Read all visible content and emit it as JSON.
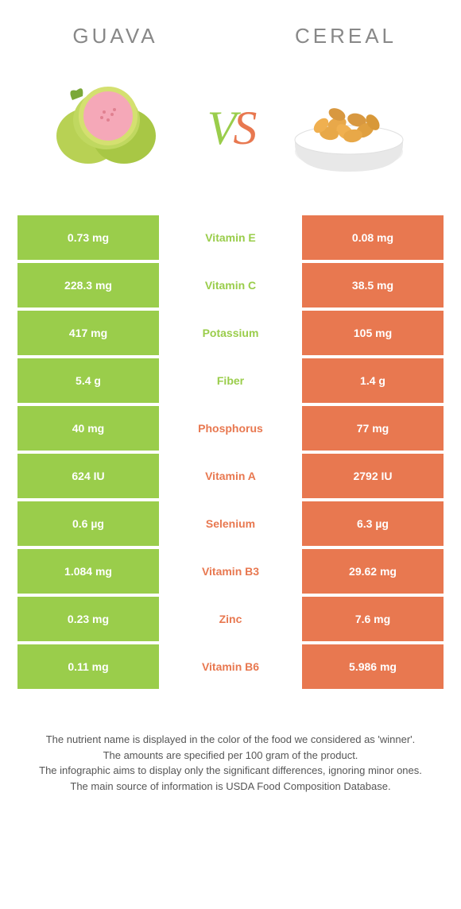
{
  "titles": {
    "left": "Guava",
    "right": "Cereal"
  },
  "vs": {
    "v": "V",
    "s": "S"
  },
  "colors": {
    "green": "#9acd4b",
    "orange": "#e87850",
    "mid_text_green": "#9acd4b",
    "mid_text_orange": "#e87850"
  },
  "rows": [
    {
      "left": "0.73 mg",
      "label": "Vitamin E",
      "right": "0.08 mg",
      "winner_color": "#9acd4b"
    },
    {
      "left": "228.3 mg",
      "label": "Vitamin C",
      "right": "38.5 mg",
      "winner_color": "#9acd4b"
    },
    {
      "left": "417 mg",
      "label": "Potassium",
      "right": "105 mg",
      "winner_color": "#9acd4b"
    },
    {
      "left": "5.4 g",
      "label": "Fiber",
      "right": "1.4 g",
      "winner_color": "#9acd4b"
    },
    {
      "left": "40 mg",
      "label": "Phosphorus",
      "right": "77 mg",
      "winner_color": "#e87850"
    },
    {
      "left": "624 IU",
      "label": "Vitamin A",
      "right": "2792 IU",
      "winner_color": "#e87850"
    },
    {
      "left": "0.6 µg",
      "label": "Selenium",
      "right": "6.3 µg",
      "winner_color": "#e87850"
    },
    {
      "left": "1.084 mg",
      "label": "Vitamin B3",
      "right": "29.62 mg",
      "winner_color": "#e87850"
    },
    {
      "left": "0.23 mg",
      "label": "Zinc",
      "right": "7.6 mg",
      "winner_color": "#e87850"
    },
    {
      "left": "0.11 mg",
      "label": "Vitamin B6",
      "right": "5.986 mg",
      "winner_color": "#e87850"
    }
  ],
  "footer": {
    "line1": "The nutrient name is displayed in the color of the food we considered as 'winner'.",
    "line2": "The amounts are specified per 100 gram of the product.",
    "line3": "The infographic aims to display only the significant differences, ignoring minor ones.",
    "line4": "The main source of information is USDA Food Composition Database."
  }
}
